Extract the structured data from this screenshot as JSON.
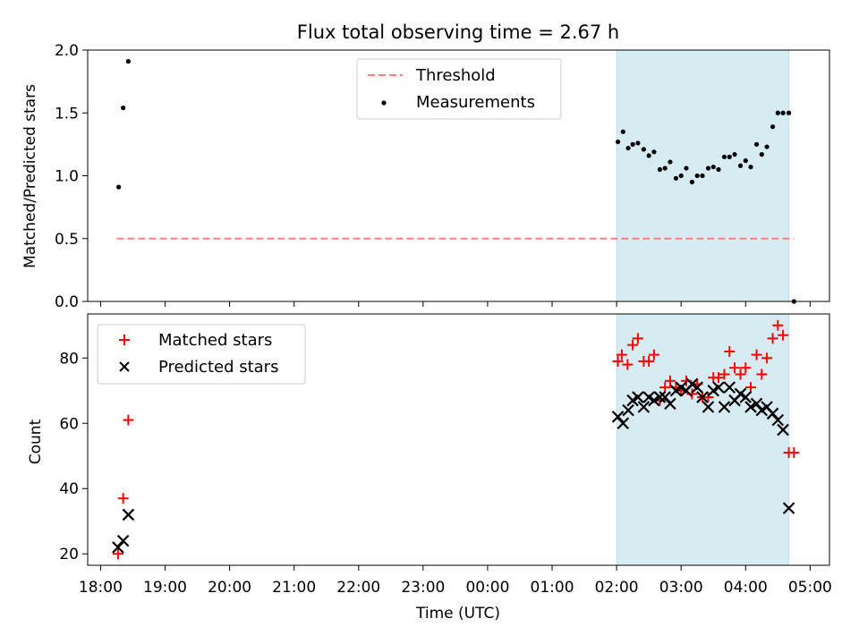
{
  "chart_data": {
    "title": "Flux total observing time = 2.67 h",
    "xlabel": "Time (UTC)",
    "x_range_hours": [
      17.8,
      29.3
    ],
    "x_ticks": [
      {
        "hour": 18,
        "label": "18:00"
      },
      {
        "hour": 19,
        "label": "19:00"
      },
      {
        "hour": 20,
        "label": "20:00"
      },
      {
        "hour": 21,
        "label": "21:00"
      },
      {
        "hour": 22,
        "label": "22:00"
      },
      {
        "hour": 23,
        "label": "23:00"
      },
      {
        "hour": 24,
        "label": "00:00"
      },
      {
        "hour": 25,
        "label": "01:00"
      },
      {
        "hour": 26,
        "label": "02:00"
      },
      {
        "hour": 27,
        "label": "03:00"
      },
      {
        "hour": 28,
        "label": "04:00"
      },
      {
        "hour": 29,
        "label": "05:00"
      }
    ],
    "shaded_span_hours": [
      26.0,
      28.67
    ],
    "shade_color": "#add8e6",
    "top": {
      "type": "scatter",
      "ylabel": "Matched/Predicted stars",
      "ylim": [
        0.0,
        2.0
      ],
      "y_ticks": [
        "0.0",
        "0.5",
        "1.0",
        "1.5",
        "2.0"
      ],
      "legend": {
        "placement": "upper-center",
        "threshold_label": "Threshold",
        "measurements_label": "Measurements"
      },
      "threshold": {
        "value": 0.5,
        "x_from": 18.25,
        "x_to": 28.75,
        "color": "#ff7f7f"
      },
      "measurements": {
        "color": "#000000",
        "x": [
          18.28,
          18.35,
          18.43,
          26.02,
          26.1,
          26.18,
          26.25,
          26.33,
          26.42,
          26.5,
          26.58,
          26.67,
          26.75,
          26.83,
          26.92,
          27.0,
          27.08,
          27.17,
          27.25,
          27.33,
          27.42,
          27.5,
          27.58,
          27.67,
          27.75,
          27.83,
          27.92,
          28.0,
          28.08,
          28.17,
          28.25,
          28.33,
          28.42,
          28.5,
          28.58,
          28.67,
          28.75
        ],
        "y": [
          0.91,
          1.54,
          1.91,
          1.27,
          1.35,
          1.22,
          1.25,
          1.26,
          1.21,
          1.16,
          1.19,
          1.05,
          1.06,
          1.11,
          0.98,
          1.0,
          1.06,
          0.95,
          1.0,
          1.0,
          1.06,
          1.07,
          1.05,
          1.15,
          1.15,
          1.17,
          1.08,
          1.12,
          1.07,
          1.25,
          1.17,
          1.23,
          1.39,
          1.5,
          1.5,
          1.5,
          0.0
        ]
      }
    },
    "bottom": {
      "type": "scatter",
      "ylabel": "Count",
      "ylim": [
        16.5,
        93.5
      ],
      "y_ticks": [
        20,
        40,
        60,
        80
      ],
      "legend": {
        "placement": "upper-left"
      },
      "series": [
        {
          "name": "Matched stars",
          "marker": "plus",
          "color": "#ff0000",
          "x": [
            18.27,
            18.35,
            18.43,
            26.02,
            26.08,
            26.17,
            26.25,
            26.33,
            26.42,
            26.5,
            26.58,
            26.67,
            26.75,
            26.83,
            26.92,
            27.0,
            27.08,
            27.17,
            27.25,
            27.33,
            27.42,
            27.5,
            27.58,
            27.67,
            27.75,
            27.83,
            27.92,
            28.0,
            28.08,
            28.17,
            28.25,
            28.33,
            28.42,
            28.5,
            28.58,
            28.67,
            28.75
          ],
          "y": [
            20,
            37,
            61,
            79,
            81,
            78,
            84,
            86,
            79,
            79,
            81,
            67,
            71,
            73,
            71,
            70,
            73,
            69,
            72,
            68,
            68,
            74,
            74,
            75,
            82,
            77,
            75,
            77,
            71,
            81,
            75,
            80,
            86,
            90,
            87,
            51,
            51
          ]
        },
        {
          "name": "Predicted stars",
          "marker": "x",
          "color": "#000000",
          "x": [
            18.27,
            18.35,
            18.43,
            26.02,
            26.1,
            26.18,
            26.25,
            26.33,
            26.42,
            26.5,
            26.58,
            26.67,
            26.75,
            26.83,
            26.92,
            27.0,
            27.08,
            27.17,
            27.25,
            27.33,
            27.42,
            27.5,
            27.58,
            27.67,
            27.75,
            27.83,
            27.92,
            28.0,
            28.08,
            28.17,
            28.25,
            28.33,
            28.42,
            28.5,
            28.58,
            28.67
          ],
          "y": [
            22,
            24,
            32,
            62,
            60,
            64,
            67,
            68,
            65,
            68,
            67,
            68,
            68,
            66,
            70,
            71,
            70,
            72,
            71,
            68,
            65,
            70,
            71,
            65,
            71,
            67,
            69,
            68,
            65,
            66,
            64,
            65,
            63,
            61,
            58,
            34
          ]
        }
      ]
    }
  }
}
